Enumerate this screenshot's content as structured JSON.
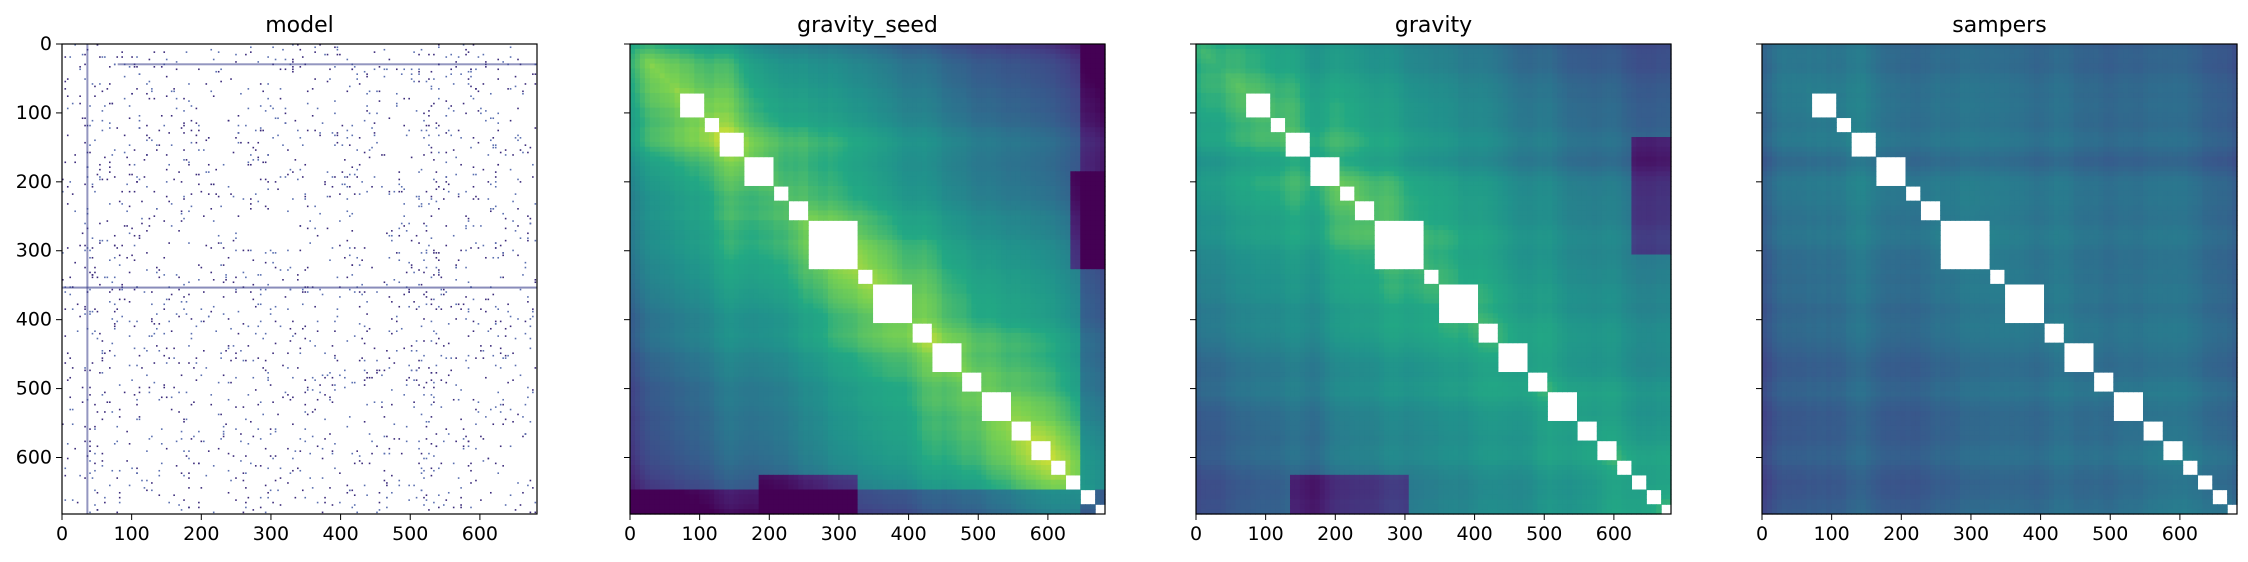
{
  "chart_data": [
    {
      "type": "heatmap",
      "title": "model",
      "colormap": "viridis (sparse, mostly masked/white)",
      "xlim": [
        0,
        682
      ],
      "ylim": [
        682,
        0
      ],
      "xticks": [
        0,
        100,
        200,
        300,
        400,
        500,
        600
      ],
      "yticks": [
        0,
        100,
        200,
        300,
        400,
        500,
        600
      ],
      "show_y_tick_labels": true,
      "style": "sparse"
    },
    {
      "type": "heatmap",
      "title": "gravity_seed",
      "colormap": "viridis",
      "xlim": [
        0,
        682
      ],
      "ylim": [
        682,
        0
      ],
      "xticks": [
        0,
        100,
        200,
        300,
        400,
        500,
        600
      ],
      "yticks": [
        0,
        100,
        200,
        300,
        400,
        500,
        600
      ],
      "show_y_tick_labels": false,
      "style": "seed"
    },
    {
      "type": "heatmap",
      "title": "gravity",
      "colormap": "viridis",
      "xlim": [
        0,
        682
      ],
      "ylim": [
        682,
        0
      ],
      "xticks": [
        0,
        100,
        200,
        300,
        400,
        500,
        600
      ],
      "yticks": [
        0,
        100,
        200,
        300,
        400,
        500,
        600
      ],
      "show_y_tick_labels": false,
      "style": "gravity"
    },
    {
      "type": "heatmap",
      "title": "sampers",
      "colormap": "viridis",
      "xlim": [
        0,
        682
      ],
      "ylim": [
        682,
        0
      ],
      "xticks": [
        0,
        100,
        200,
        300,
        400,
        500,
        600
      ],
      "yticks": [
        0,
        100,
        200,
        300,
        400,
        500,
        600
      ],
      "show_y_tick_labels": false,
      "style": "sampers"
    }
  ],
  "colors": {
    "viridis_dark": "#440154",
    "viridis_mid": "#21918c",
    "viridis_bright": "#fde725",
    "masked": "#ffffff"
  }
}
